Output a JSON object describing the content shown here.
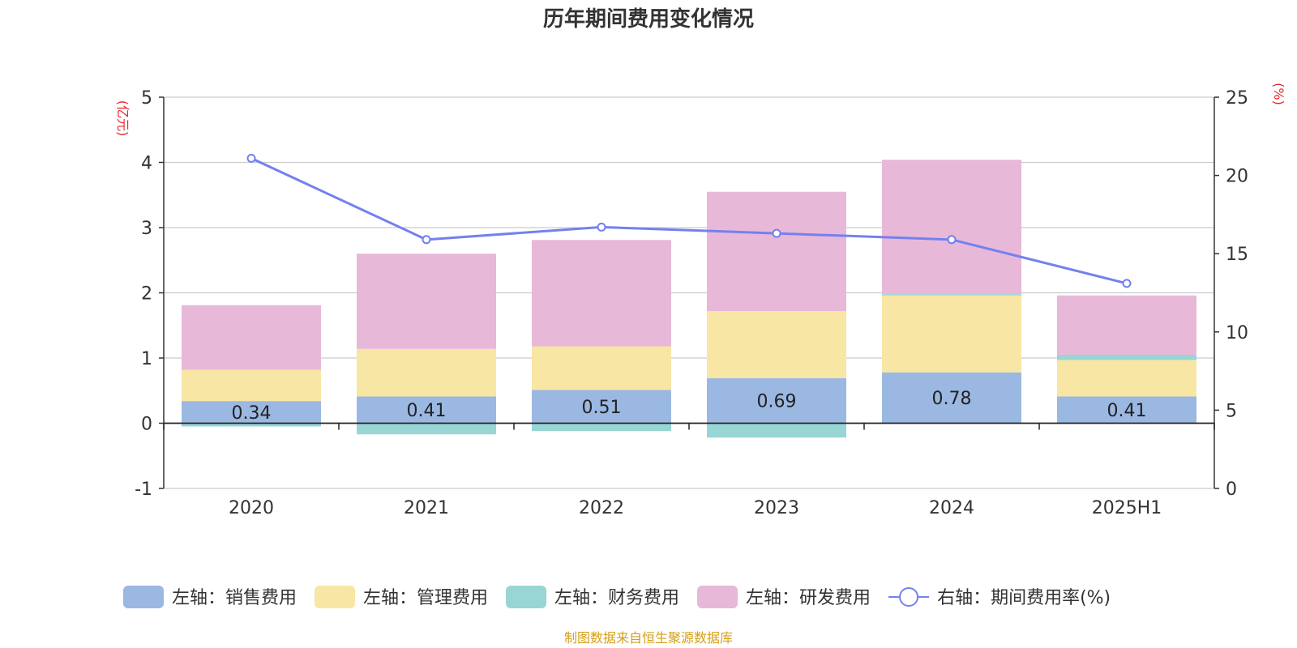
{
  "chart_data": {
    "type": "bar",
    "title": "历年期间费用变化情况",
    "categories": [
      "2020",
      "2021",
      "2022",
      "2023",
      "2024",
      "2025H1"
    ],
    "left_axis": {
      "unit": "(亿元)",
      "ylim": [
        -1,
        5
      ],
      "ticks": [
        "-1",
        "0",
        "1",
        "2",
        "3",
        "4",
        "5"
      ]
    },
    "right_axis": {
      "unit": "(%)",
      "ylim": [
        0,
        25
      ],
      "ticks": [
        "0",
        "5",
        "10",
        "15",
        "20",
        "25"
      ]
    },
    "series": [
      {
        "name": "左轴：销售费用",
        "kind": "bar",
        "axis": "left",
        "color": "#9bb8e2",
        "values": [
          0.34,
          0.41,
          0.51,
          0.69,
          0.78,
          0.41
        ],
        "labels": [
          "0.34",
          "0.41",
          "0.51",
          "0.69",
          "0.78",
          "0.41"
        ]
      },
      {
        "name": "左轴：管理费用",
        "kind": "bar",
        "axis": "left",
        "color": "#f8e6a5",
        "values": [
          0.48,
          0.73,
          0.67,
          1.03,
          1.18,
          0.56
        ]
      },
      {
        "name": "左轴：财务费用",
        "kind": "bar",
        "axis": "left",
        "color": "#98d5d5",
        "values": [
          -0.05,
          -0.17,
          -0.12,
          -0.22,
          0.02,
          0.08
        ]
      },
      {
        "name": "左轴：研发费用",
        "kind": "bar",
        "axis": "left",
        "color": "#e8b8d8",
        "values": [
          0.99,
          1.46,
          1.63,
          1.83,
          2.06,
          0.91
        ]
      },
      {
        "name": "右轴：期间费用率(%)",
        "kind": "line",
        "axis": "right",
        "color": "#7480f0",
        "values": [
          21.1,
          15.9,
          16.7,
          16.3,
          15.9,
          13.1
        ]
      }
    ],
    "grid": true,
    "legend_position": "bottom"
  },
  "source_note": "制图数据来自恒生聚源数据库"
}
